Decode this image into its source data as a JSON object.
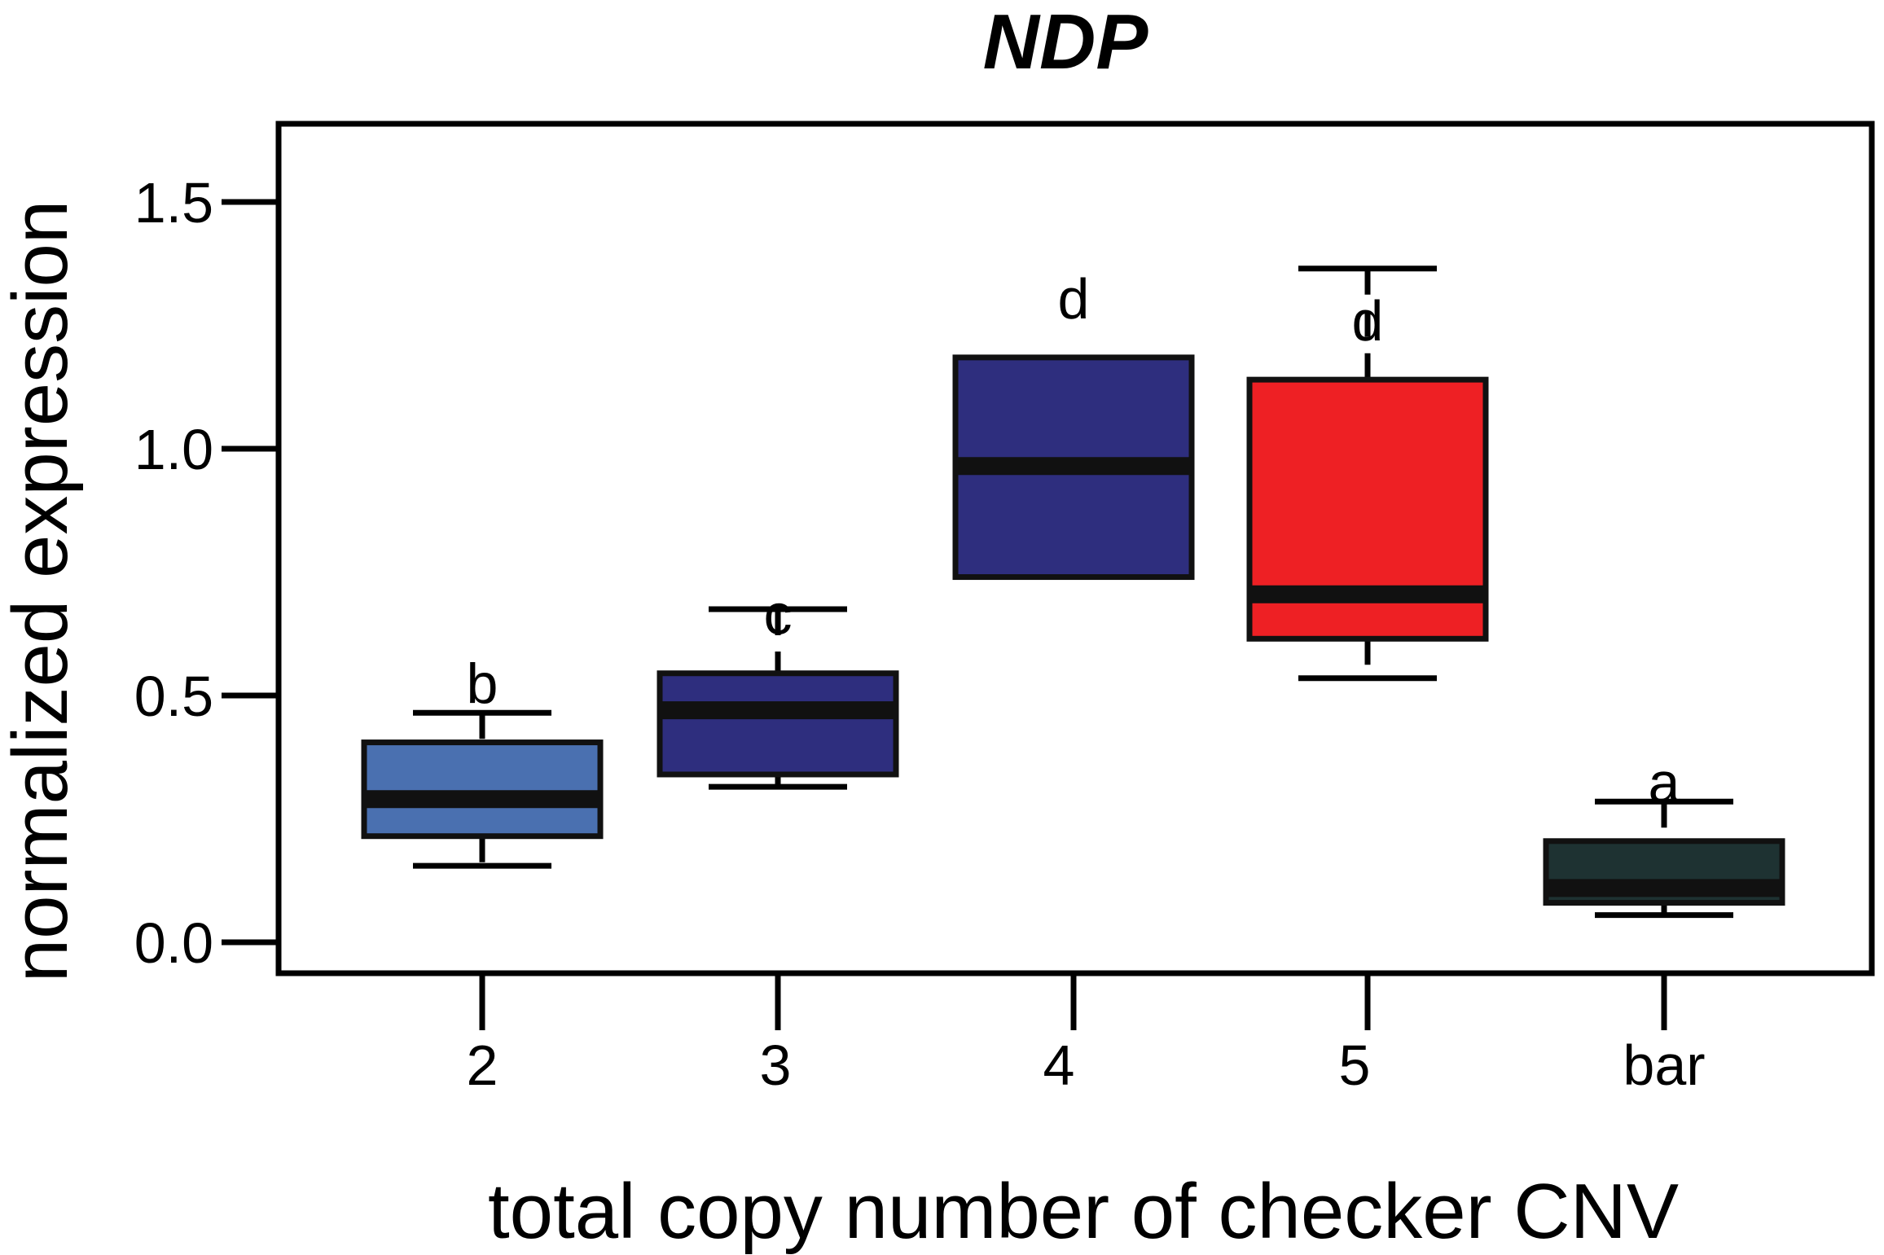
{
  "chart_data": {
    "type": "box",
    "title": "NDP",
    "xlabel": "total copy number of checker CNV",
    "ylabel": "normalized expression",
    "ylim": [
      -0.065,
      1.65
    ],
    "yticks": [
      0.0,
      0.5,
      1.0,
      1.5
    ],
    "ytick_labels": [
      "0.0",
      "0.5",
      "1.0",
      "1.5"
    ],
    "grid": false,
    "legend": "none",
    "categories": [
      "2",
      "3",
      "4",
      "5",
      "bar"
    ],
    "boxes": [
      {
        "category": "2",
        "whisker_low": 0.155,
        "q1": 0.215,
        "median": 0.29,
        "q3": 0.405,
        "whisker_high": 0.465,
        "color": "#4a70b0",
        "sig": "b"
      },
      {
        "category": "3",
        "whisker_low": 0.315,
        "q1": 0.34,
        "median": 0.47,
        "q3": 0.545,
        "whisker_high": 0.675,
        "color": "#2e2e7e",
        "sig": "c"
      },
      {
        "category": "4",
        "whisker_low": 0.74,
        "q1": 0.74,
        "median": 0.965,
        "q3": 1.185,
        "whisker_high": 1.185,
        "color": "#2e2e7e",
        "sig": "d"
      },
      {
        "category": "5",
        "whisker_low": 0.535,
        "q1": 0.615,
        "median": 0.705,
        "q3": 1.14,
        "whisker_high": 1.365,
        "color": "#ee2024",
        "sig": "d"
      },
      {
        "category": "bar",
        "whisker_low": 0.055,
        "q1": 0.08,
        "median": 0.11,
        "q3": 0.205,
        "whisker_high": 0.285,
        "color": "#1e3232",
        "sig": "a"
      }
    ]
  }
}
